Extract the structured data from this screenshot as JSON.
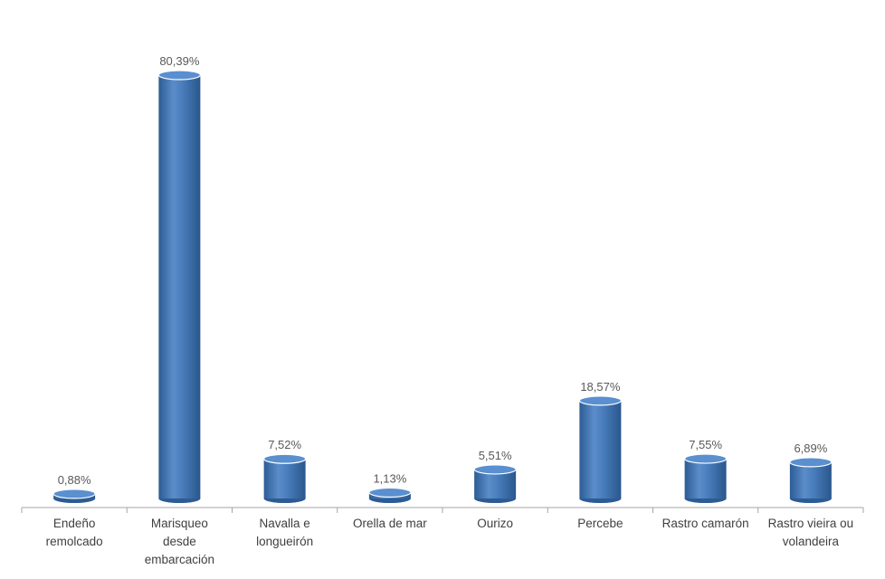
{
  "chart_data": {
    "type": "bar",
    "bar_shape": "cylinder",
    "categories": [
      [
        "Endeño",
        "remolcado"
      ],
      [
        "Marisqueo",
        "desde",
        "embarcación"
      ],
      [
        "Navalla e",
        "longueirón"
      ],
      [
        "Orella de mar"
      ],
      [
        "Ourizo"
      ],
      [
        "Percebe"
      ],
      [
        "Rastro camarón"
      ],
      [
        "Rastro vieira ou",
        "volandeira"
      ]
    ],
    "values": [
      0.88,
      80.39,
      7.52,
      1.13,
      5.51,
      18.57,
      7.55,
      6.89
    ],
    "data_labels": [
      "0,88%",
      "80,39%",
      "7,52%",
      "1,13%",
      "5,51%",
      "18,57%",
      "7,55%",
      "6,89%"
    ],
    "ylim": [
      0,
      80.39
    ],
    "grid": false,
    "legend": "none",
    "colors": {
      "bar_dark": "#2d5c94",
      "bar_mid": "#4a7ebd",
      "bar_light": "#7aa6dc",
      "bar_top": "#5a8fd0",
      "axis": "#a6a6a6"
    }
  }
}
